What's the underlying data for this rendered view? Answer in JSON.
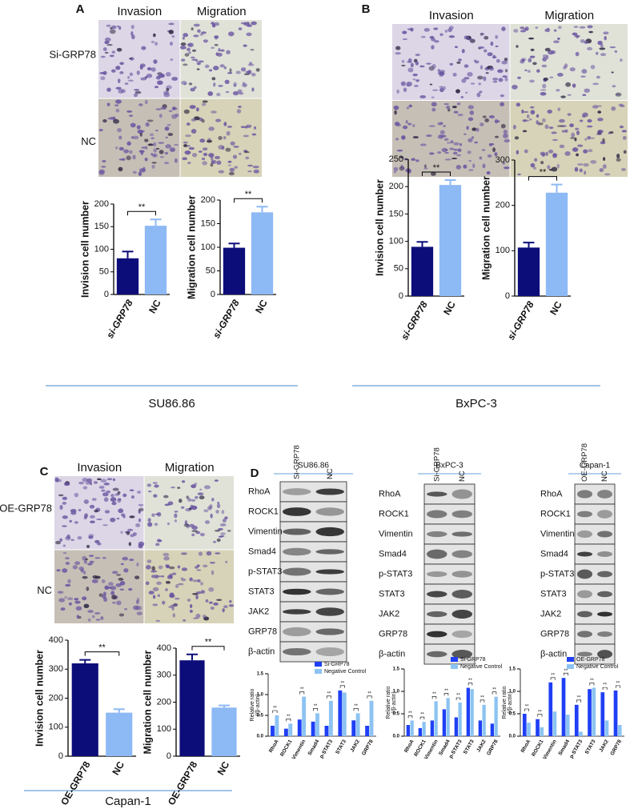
{
  "panel_labels": [
    "A",
    "B",
    "C",
    "D"
  ],
  "images": [
    {
      "columns": [
        "Invasion",
        "Migration"
      ],
      "rows": [
        "Si-GRP78",
        "NC"
      ]
    },
    {
      "columns": [
        "Invasion",
        "Migration"
      ],
      "rows": []
    },
    {
      "columns": [
        "Invasion",
        "Migration"
      ],
      "rows": [
        "OE-GRP78",
        "NC"
      ]
    }
  ],
  "cell_lines": [
    "SU86.86",
    "BxPC-3",
    "Capan-1"
  ],
  "blots": [
    {
      "title": "SU86.86",
      "lanes": [
        "Si-GRP78",
        "NC"
      ],
      "proteins": [
        "RhoA",
        "ROCK1",
        "Vimentin",
        "Smad4",
        "p-STAT3",
        "STAT3",
        "JAK2",
        "GRP78",
        "β-actin"
      ]
    },
    {
      "title": "BxPC-3",
      "lanes": [
        "Si-GRP78",
        "NC"
      ],
      "proteins": [
        "RhoA",
        "ROCK1",
        "Vimentin",
        "Smad4",
        "p-STAT3",
        "STAT3",
        "JAK2",
        "GRP78",
        "β-actin"
      ]
    },
    {
      "title": "Capan-1",
      "lanes": [
        "OE-GRP78",
        "NC"
      ],
      "proteins": [
        "RhoA",
        "ROCK1",
        "Vimentin",
        "Smad4",
        "p-STAT3",
        "STAT3",
        "JAK2",
        "GRP78",
        "β-actin"
      ]
    }
  ],
  "chart_data": [
    {
      "type": "bar",
      "ylabel": "Invision cell number",
      "categories": [
        "si-GRP78",
        "NC"
      ],
      "values": [
        80,
        152
      ],
      "errors": [
        15,
        14
      ],
      "colors": [
        "#0d0d7a",
        "#8db9f4"
      ],
      "ylim": [
        0,
        200
      ],
      "yticks": [
        0,
        50,
        100,
        150,
        200
      ],
      "significance": "**"
    },
    {
      "type": "bar",
      "ylabel": "Migration cell number",
      "categories": [
        "si-GRP78",
        "NC"
      ],
      "values": [
        99,
        174
      ],
      "errors": [
        9,
        12
      ],
      "colors": [
        "#0d0d7a",
        "#8db9f4"
      ],
      "ylim": [
        0,
        200
      ],
      "yticks": [
        0,
        50,
        100,
        150,
        200
      ],
      "significance": "**"
    },
    {
      "type": "bar",
      "ylabel": "Invision cell number",
      "categories": [
        "si-GRP78",
        "NC"
      ],
      "values": [
        90,
        203
      ],
      "errors": [
        9,
        9
      ],
      "colors": [
        "#0d0d7a",
        "#8db9f4"
      ],
      "ylim": [
        0,
        250
      ],
      "yticks": [
        0,
        50,
        100,
        150,
        200,
        250
      ],
      "significance": "**"
    },
    {
      "type": "bar",
      "ylabel": "Migration cell number",
      "categories": [
        "si-GRP78",
        "NC"
      ],
      "values": [
        107,
        228
      ],
      "errors": [
        11,
        18
      ],
      "colors": [
        "#0d0d7a",
        "#8db9f4"
      ],
      "ylim": [
        0,
        300
      ],
      "yticks": [
        0,
        100,
        200,
        300
      ],
      "significance": "**"
    },
    {
      "type": "bar",
      "ylabel": "Invision cell number",
      "categories": [
        "OE-GRP78",
        "NC"
      ],
      "values": [
        320,
        150
      ],
      "errors": [
        12,
        12
      ],
      "colors": [
        "#0d0d7a",
        "#8db9f4"
      ],
      "ylim": [
        0,
        400
      ],
      "yticks": [
        0,
        100,
        200,
        300,
        400
      ],
      "significance": "**"
    },
    {
      "type": "bar",
      "ylabel": "Migration cell number",
      "categories": [
        "OE-GRP78",
        "NC"
      ],
      "values": [
        355,
        180
      ],
      "errors": [
        22,
        8
      ],
      "colors": [
        "#0d0d7a",
        "#8db9f4"
      ],
      "ylim": [
        0,
        400
      ],
      "yticks": [
        0,
        100,
        200,
        300,
        400
      ],
      "significance": "**"
    },
    {
      "type": "grouped_bar",
      "ylabel": [
        "Relative ratio",
        "(/β-actin)"
      ],
      "categories": [
        "RhoA",
        "ROCK1",
        "Vimentin",
        "Smad4",
        "p-STAT3",
        "STAT3",
        "JAK2",
        "GRP78"
      ],
      "series": [
        {
          "name": "Si-GRP78",
          "color": "#1f3ff5",
          "values": [
            0.25,
            0.18,
            0.4,
            0.35,
            0.25,
            1.1,
            0.38,
            0.25
          ]
        },
        {
          "name": "Negative Control",
          "color": "#8cc3f2",
          "values": [
            0.5,
            0.3,
            0.95,
            0.55,
            0.85,
            1.05,
            0.55,
            0.85
          ]
        }
      ],
      "ylim": [
        0,
        1.5
      ],
      "yticks": [
        {
          "value": 0,
          "label": "0.0"
        },
        0.5,
        {
          "value": 1,
          "label": "1.0"
        },
        1.5
      ],
      "significance": "**"
    },
    {
      "type": "grouped_bar",
      "ylabel": [
        "Relative ratio",
        "(/β-actin)"
      ],
      "categories": [
        "RhoA",
        "ROCK1",
        "Vimentin",
        "Smad4",
        "p-STAT3",
        "STAT3",
        "JAK2",
        "GRP78"
      ],
      "series": [
        {
          "name": "Si-GRP78",
          "color": "#1f3ff5",
          "values": [
            0.25,
            0.18,
            0.35,
            0.6,
            0.42,
            1.08,
            0.35,
            0.28
          ]
        },
        {
          "name": "Negative Control",
          "color": "#8cc3f2",
          "values": [
            0.35,
            0.32,
            0.78,
            0.85,
            0.75,
            1.05,
            0.7,
            0.88
          ]
        }
      ],
      "ylim": [
        0,
        1.5
      ],
      "yticks": [
        {
          "value": 0,
          "label": "0.0"
        },
        0.5,
        {
          "value": 1,
          "label": "1.0"
        },
        1.5
      ],
      "significance": "**"
    },
    {
      "type": "grouped_bar",
      "ylabel": [
        "Relative ratio",
        "(/β-actin)"
      ],
      "categories": [
        "RhoA",
        "ROCK1",
        "Vimentin",
        "Smad4",
        "p-STAT3",
        "STAT3",
        "JAK2",
        "GRP78"
      ],
      "series": [
        {
          "name": "OE-GRP78",
          "color": "#1f3ff5",
          "values": [
            0.5,
            0.38,
            1.2,
            1.3,
            0.7,
            1.05,
            0.98,
            1.02
          ]
        },
        {
          "name": "Negative Control",
          "color": "#8cc3f2",
          "values": [
            0.3,
            0.2,
            0.55,
            0.48,
            0.1,
            1.08,
            0.35,
            0.25
          ]
        }
      ],
      "ylim": [
        0,
        1.5
      ],
      "yticks": [
        {
          "value": 0,
          "label": "0.0"
        },
        0.5,
        {
          "value": 1,
          "label": "1.0"
        },
        1.5
      ],
      "significance": "**"
    }
  ]
}
